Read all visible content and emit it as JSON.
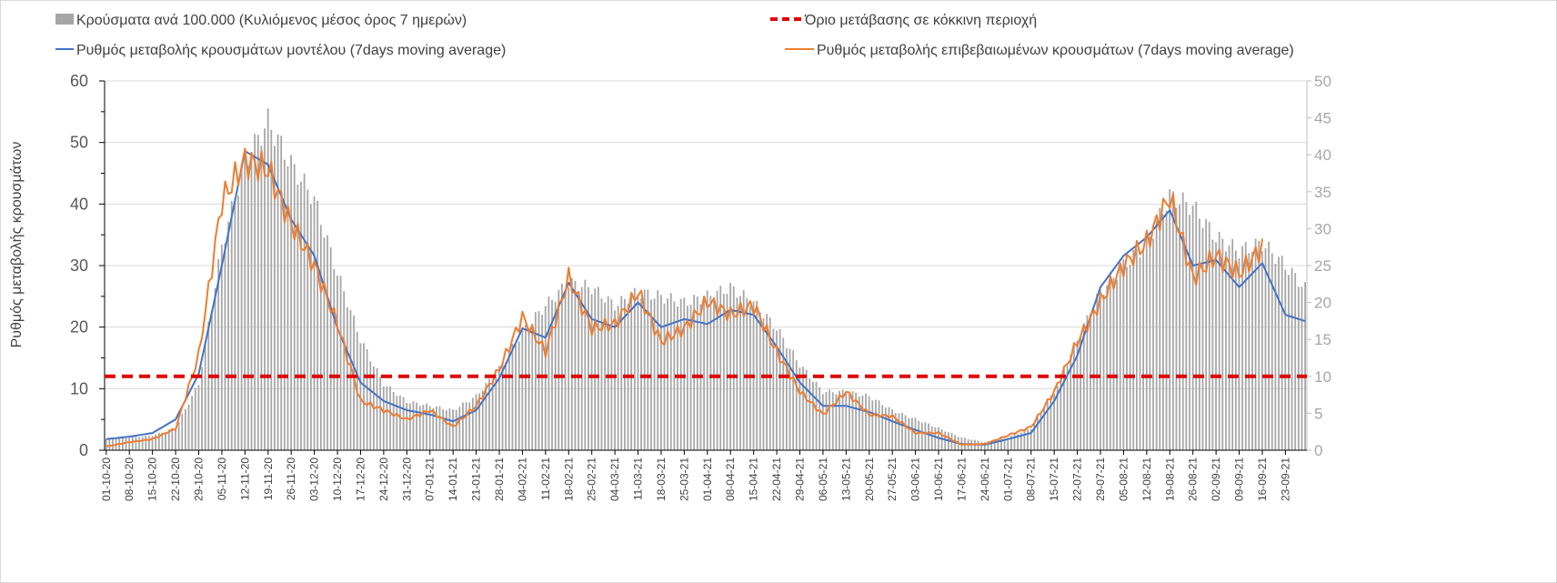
{
  "chart_data": {
    "type": "bar+line",
    "xlabel": "",
    "ylabel": "Ρυθμός μεταβολής κρουσμάτων",
    "ylim_left": [
      0,
      60
    ],
    "ylim_right": [
      0,
      50
    ],
    "yticks_left": [
      "0",
      "10",
      "20",
      "30",
      "40",
      "50",
      "60"
    ],
    "yticks_right": [
      "0",
      "5",
      "10",
      "15",
      "20",
      "25",
      "30",
      "35",
      "40",
      "45",
      "50"
    ],
    "total_days": 364,
    "x_tick_labels": [
      "01-10-20",
      "08-10-20",
      "15-10-20",
      "22-10-20",
      "29-10-20",
      "05-11-20",
      "12-11-20",
      "19-11-20",
      "26-11-20",
      "03-12-20",
      "10-12-20",
      "17-12-20",
      "24-12-20",
      "31-12-20",
      "07-01-21",
      "14-01-21",
      "21-01-21",
      "28-01-21",
      "04-02-21",
      "11-02-21",
      "18-02-21",
      "25-02-21",
      "04-03-21",
      "11-03-21",
      "18-03-21",
      "25-03-21",
      "01-04-21",
      "08-04-21",
      "15-04-21",
      "22-04-21",
      "29-04-21",
      "06-05-21",
      "13-05-21",
      "20-05-21",
      "27-05-21",
      "03-06-21",
      "10-06-21",
      "17-06-21",
      "24-06-21",
      "01-07-21",
      "08-07-21",
      "15-07-21",
      "22-07-21",
      "29-07-21",
      "05-08-21",
      "12-08-21",
      "19-08-21",
      "26-08-21",
      "02-09-21",
      "09-09-21",
      "16-09-21",
      "23-09-21"
    ],
    "series": [
      {
        "name": "Κρούσματα ανά 100.000 (Κυλιόμενος μέσος όρος 7 ημερών)",
        "kind": "bar",
        "axis": "right",
        "color": "#a6a6a6",
        "weekly_values": [
          1.5,
          1.7,
          2,
          3,
          9,
          27.6,
          39,
          44.5,
          38.7,
          34,
          24,
          15,
          9,
          6.6,
          6,
          5.4,
          7.3,
          11,
          16,
          19.6,
          22.7,
          22,
          19.6,
          21.4,
          20.8,
          20,
          20.8,
          22,
          20,
          16.5,
          11.6,
          7.9,
          7.9,
          7.3,
          5.4,
          4.2,
          3,
          1.7,
          1.1,
          1.7,
          3,
          7.9,
          15,
          21.4,
          25,
          28,
          34.4,
          33,
          28.8,
          27,
          28,
          25,
          21.4
        ]
      },
      {
        "name": "Ρυθμός μεταβολής κρουσμάτων μοντέλου (7days moving average)",
        "kind": "line",
        "axis": "left",
        "color": "#4472c4",
        "weekly_values": [
          1.8,
          2.2,
          2.8,
          5,
          12.4,
          30,
          48.6,
          46.4,
          37.5,
          31.6,
          19.8,
          11,
          8,
          6.5,
          5.8,
          4.7,
          6.5,
          11.7,
          19.8,
          18.3,
          27.2,
          21.3,
          20,
          24,
          20,
          21.3,
          20.5,
          22.8,
          22,
          16.8,
          11,
          7.2,
          7.2,
          6.2,
          4.7,
          3.3,
          2,
          1,
          0.9,
          1.8,
          2.8,
          8,
          15.4,
          26.5,
          31.6,
          34.6,
          39,
          30,
          30.9,
          26.5,
          30.4,
          22,
          20.8
        ]
      },
      {
        "name": "Ρυθμός μεταβολής επιβεβαιωμένων κρουσμάτων (7days moving average)",
        "kind": "line",
        "axis": "left",
        "color": "#ed7d31",
        "weekly_values": [
          0.6,
          1.3,
          1.8,
          3.5,
          15.4,
          40.5,
          47,
          45.6,
          36.8,
          30,
          20.5,
          8,
          6.5,
          5,
          6.5,
          3.8,
          7.2,
          13.2,
          21.6,
          16,
          28,
          19.8,
          20.5,
          25.7,
          17.6,
          19.8,
          24.2,
          22,
          23.5,
          16,
          9.5,
          5.8,
          9.5,
          5.8,
          5.5,
          2.8,
          2.8,
          0.9,
          1,
          2.4,
          3.8,
          9.5,
          17.6,
          24.2,
          30,
          33.8,
          41.2,
          28,
          31.6,
          28.7,
          33
        ]
      },
      {
        "name": "Όριο μετάβασης σε κόκκινη περιοχή",
        "kind": "threshold",
        "axis": "left",
        "color": "#e00000",
        "value": 12
      }
    ],
    "legend_position": "top"
  }
}
